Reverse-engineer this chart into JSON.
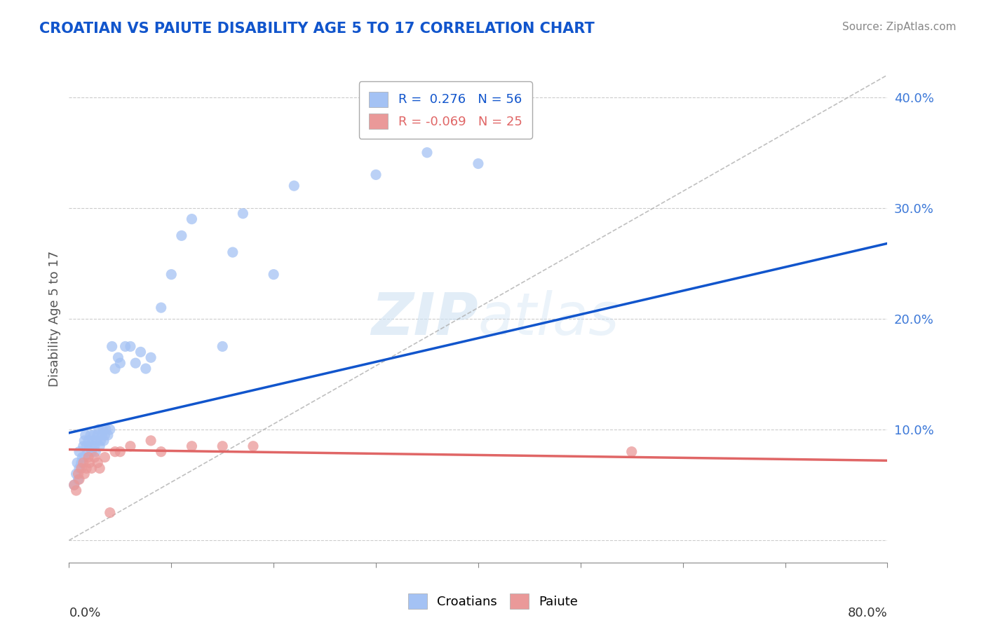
{
  "title": "CROATIAN VS PAIUTE DISABILITY AGE 5 TO 17 CORRELATION CHART",
  "source": "Source: ZipAtlas.com",
  "ylabel": "Disability Age 5 to 17",
  "xmin": 0.0,
  "xmax": 0.8,
  "ymin": -0.02,
  "ymax": 0.42,
  "yticks": [
    0.0,
    0.1,
    0.2,
    0.3,
    0.4
  ],
  "ytick_labels": [
    "",
    "10.0%",
    "20.0%",
    "30.0%",
    "40.0%"
  ],
  "croatian_R": 0.276,
  "croatian_N": 56,
  "paiute_R": -0.069,
  "paiute_N": 25,
  "croatian_color": "#a4c2f4",
  "paiute_color": "#ea9999",
  "trendline_croatian_color": "#1155cc",
  "trendline_paiute_color": "#e06666",
  "croatian_trendline_x0": 0.0,
  "croatian_trendline_y0": 0.097,
  "croatian_trendline_x1": 0.8,
  "croatian_trendline_y1": 0.268,
  "paiute_trendline_x0": 0.0,
  "paiute_trendline_y0": 0.082,
  "paiute_trendline_x1": 0.8,
  "paiute_trendline_y1": 0.072,
  "ref_line_x0": 0.0,
  "ref_line_y0": 0.0,
  "ref_line_x1": 0.8,
  "ref_line_y1": 0.42,
  "croatian_points_x": [
    0.005,
    0.007,
    0.008,
    0.009,
    0.01,
    0.01,
    0.012,
    0.013,
    0.014,
    0.015,
    0.015,
    0.016,
    0.017,
    0.018,
    0.019,
    0.02,
    0.021,
    0.022,
    0.023,
    0.024,
    0.025,
    0.026,
    0.027,
    0.028,
    0.029,
    0.03,
    0.031,
    0.032,
    0.033,
    0.034,
    0.035,
    0.036,
    0.038,
    0.04,
    0.042,
    0.045,
    0.048,
    0.05,
    0.055,
    0.06,
    0.065,
    0.07,
    0.075,
    0.08,
    0.09,
    0.1,
    0.11,
    0.12,
    0.15,
    0.16,
    0.17,
    0.2,
    0.22,
    0.3,
    0.35,
    0.4
  ],
  "croatian_points_y": [
    0.05,
    0.06,
    0.07,
    0.055,
    0.065,
    0.08,
    0.07,
    0.075,
    0.085,
    0.09,
    0.075,
    0.095,
    0.085,
    0.08,
    0.09,
    0.085,
    0.095,
    0.08,
    0.09,
    0.095,
    0.085,
    0.08,
    0.09,
    0.095,
    0.1,
    0.085,
    0.09,
    0.095,
    0.1,
    0.09,
    0.095,
    0.1,
    0.095,
    0.1,
    0.175,
    0.155,
    0.165,
    0.16,
    0.175,
    0.175,
    0.16,
    0.17,
    0.155,
    0.165,
    0.21,
    0.24,
    0.275,
    0.29,
    0.175,
    0.26,
    0.295,
    0.24,
    0.32,
    0.33,
    0.35,
    0.34
  ],
  "paiute_points_x": [
    0.005,
    0.007,
    0.009,
    0.01,
    0.012,
    0.014,
    0.015,
    0.017,
    0.019,
    0.02,
    0.022,
    0.025,
    0.028,
    0.03,
    0.035,
    0.04,
    0.045,
    0.05,
    0.06,
    0.08,
    0.09,
    0.12,
    0.15,
    0.18,
    0.55
  ],
  "paiute_points_y": [
    0.05,
    0.045,
    0.06,
    0.055,
    0.065,
    0.07,
    0.06,
    0.065,
    0.075,
    0.07,
    0.065,
    0.075,
    0.07,
    0.065,
    0.075,
    0.025,
    0.08,
    0.08,
    0.085,
    0.09,
    0.08,
    0.085,
    0.085,
    0.085,
    0.08
  ]
}
